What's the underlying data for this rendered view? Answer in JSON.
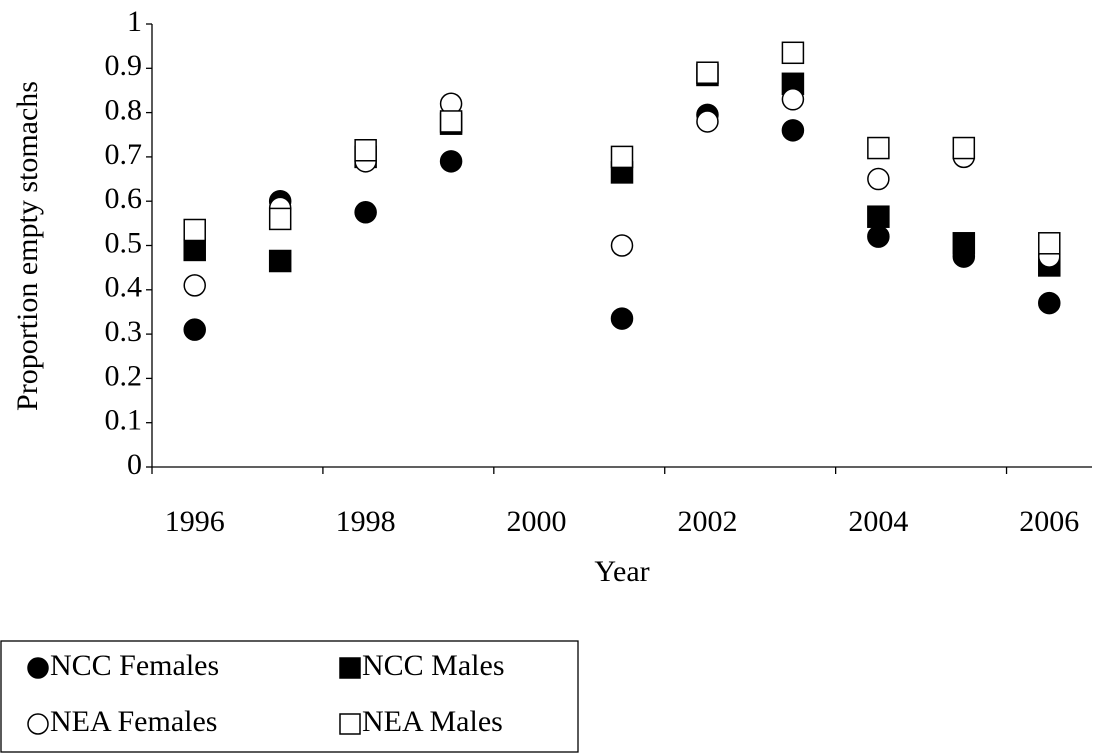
{
  "chart_data": {
    "type": "scatter",
    "x_label": "Year",
    "y_label": "Proportion empty stomachs",
    "categories": [
      "1996",
      null,
      "1998",
      null,
      "2000",
      null,
      "2002",
      null,
      "2004",
      null,
      "2006"
    ],
    "ylim": [
      0,
      1
    ],
    "yticks": [
      0,
      0.1,
      0.2,
      0.3,
      0.4,
      0.5,
      0.6,
      0.7,
      0.8,
      0.9,
      1
    ],
    "grid": false,
    "series": [
      {
        "name": "NCC Females",
        "marker": "circle",
        "filled": true,
        "color": "#000000",
        "values": [
          0.31,
          0.6,
          0.575,
          0.69,
          null,
          0.335,
          0.795,
          0.76,
          0.52,
          0.475,
          0.37
        ]
      },
      {
        "name": "NCC Males",
        "marker": "square",
        "filled": true,
        "color": "#000000",
        "values": [
          0.49,
          0.465,
          0.7,
          0.775,
          null,
          0.665,
          0.885,
          0.865,
          0.565,
          0.505,
          0.455
        ]
      },
      {
        "name": "NEA Females",
        "marker": "circle",
        "filled": false,
        "color": "#000000",
        "values": [
          0.41,
          0.585,
          0.69,
          0.82,
          null,
          0.5,
          0.78,
          0.83,
          0.65,
          0.7,
          0.475
        ]
      },
      {
        "name": "NEA Males",
        "marker": "square",
        "filled": false,
        "color": "#000000",
        "values": [
          0.535,
          0.56,
          0.715,
          0.78,
          null,
          0.7,
          0.89,
          0.935,
          0.72,
          0.72,
          0.505
        ]
      }
    ]
  }
}
